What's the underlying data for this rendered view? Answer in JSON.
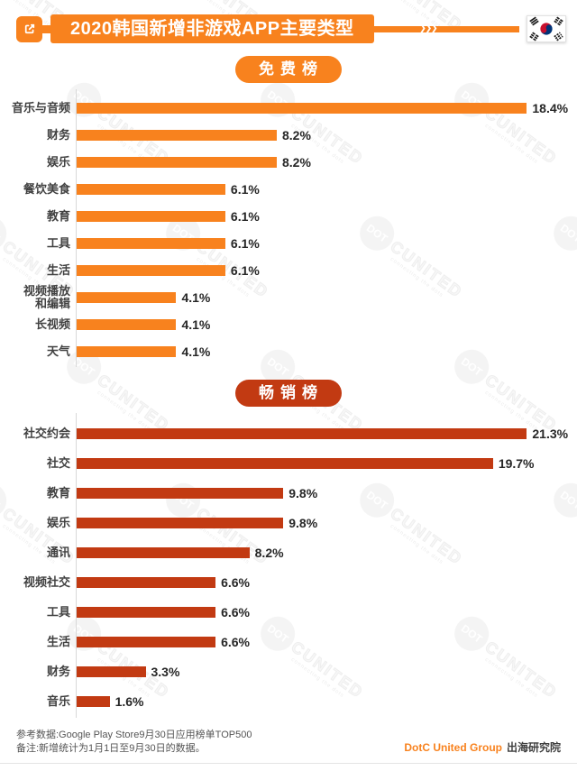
{
  "header": {
    "title": "2020韩国新增非游戏APP主要类型",
    "chevrons": "❯❯❯",
    "accent_color": "#F8821E"
  },
  "chart_data": [
    {
      "type": "bar",
      "orientation": "horizontal",
      "title": "免费榜",
      "color": "#F8821E",
      "unit": "%",
      "xlim": [
        0,
        20
      ],
      "grid": false,
      "categories": [
        "音乐与音频",
        "财务",
        "娱乐",
        "餐饮美食",
        "教育",
        "工具",
        "生活",
        "视频播放和编辑",
        "长视频",
        "天气"
      ],
      "values": [
        18.4,
        8.2,
        8.2,
        6.1,
        6.1,
        6.1,
        6.1,
        4.1,
        4.1,
        4.1
      ],
      "labels": [
        "18.4%",
        "8.2%",
        "8.2%",
        "6.1%",
        "6.1%",
        "6.1%",
        "6.1%",
        "4.1%",
        "4.1%",
        "4.1%"
      ]
    },
    {
      "type": "bar",
      "orientation": "horizontal",
      "title": "畅销榜",
      "color": "#C23A12",
      "unit": "%",
      "xlim": [
        0,
        23
      ],
      "grid": false,
      "categories": [
        "社交约会",
        "社交",
        "教育",
        "娱乐",
        "通讯",
        "视频社交",
        "工具",
        "生活",
        "财务",
        "音乐"
      ],
      "values": [
        21.3,
        19.7,
        9.8,
        9.8,
        8.2,
        6.6,
        6.6,
        6.6,
        3.3,
        1.6
      ],
      "labels": [
        "21.3%",
        "19.7%",
        "9.8%",
        "9.8%",
        "8.2%",
        "6.6%",
        "6.6%",
        "6.6%",
        "3.3%",
        "1.6%"
      ]
    }
  ],
  "footer": {
    "note1": "参考数据:Google Play Store9月30日应用榜单TOP500",
    "note2": "备注:新增统计为1月1日至9月30日的数据。",
    "brand": "DotC United Group",
    "org": "出海研究院"
  },
  "watermark": {
    "circle_text": "DOT",
    "text": "CUNITED",
    "tagline": "connecting the dots"
  }
}
